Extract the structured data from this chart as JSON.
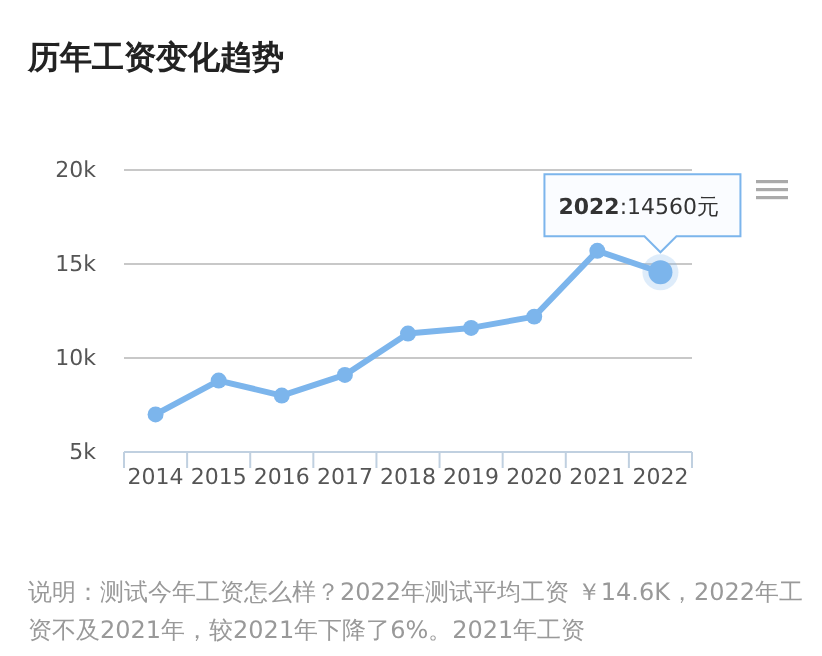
{
  "chart_data": {
    "type": "line",
    "title": "历年工资变化趋势",
    "categories": [
      "2014",
      "2015",
      "2016",
      "2017",
      "2018",
      "2019",
      "2020",
      "2021",
      "2022"
    ],
    "series": [
      {
        "color": "#7cb5ec",
        "values": [
          7000,
          8800,
          8000,
          9100,
          11300,
          11600,
          12200,
          15700,
          14560
        ]
      }
    ],
    "ylim": [
      5000,
      20000
    ],
    "yticks": [
      {
        "value": 5000,
        "label": "5k"
      },
      {
        "value": 10000,
        "label": "10k"
      },
      {
        "value": 15000,
        "label": "15k"
      },
      {
        "value": 20000,
        "label": "20k"
      }
    ],
    "grid": "y",
    "marker": "circle",
    "line_style": "solid",
    "annotations": [
      {
        "text": "2022:14560元",
        "x": "2022",
        "y": 14560
      },
      "说明：测试今年工资怎么样？2022年测试平均工资 ￥14.6K，2022年工资不及2021年，较2021年下降了6%。2021年工资"
    ]
  }
}
